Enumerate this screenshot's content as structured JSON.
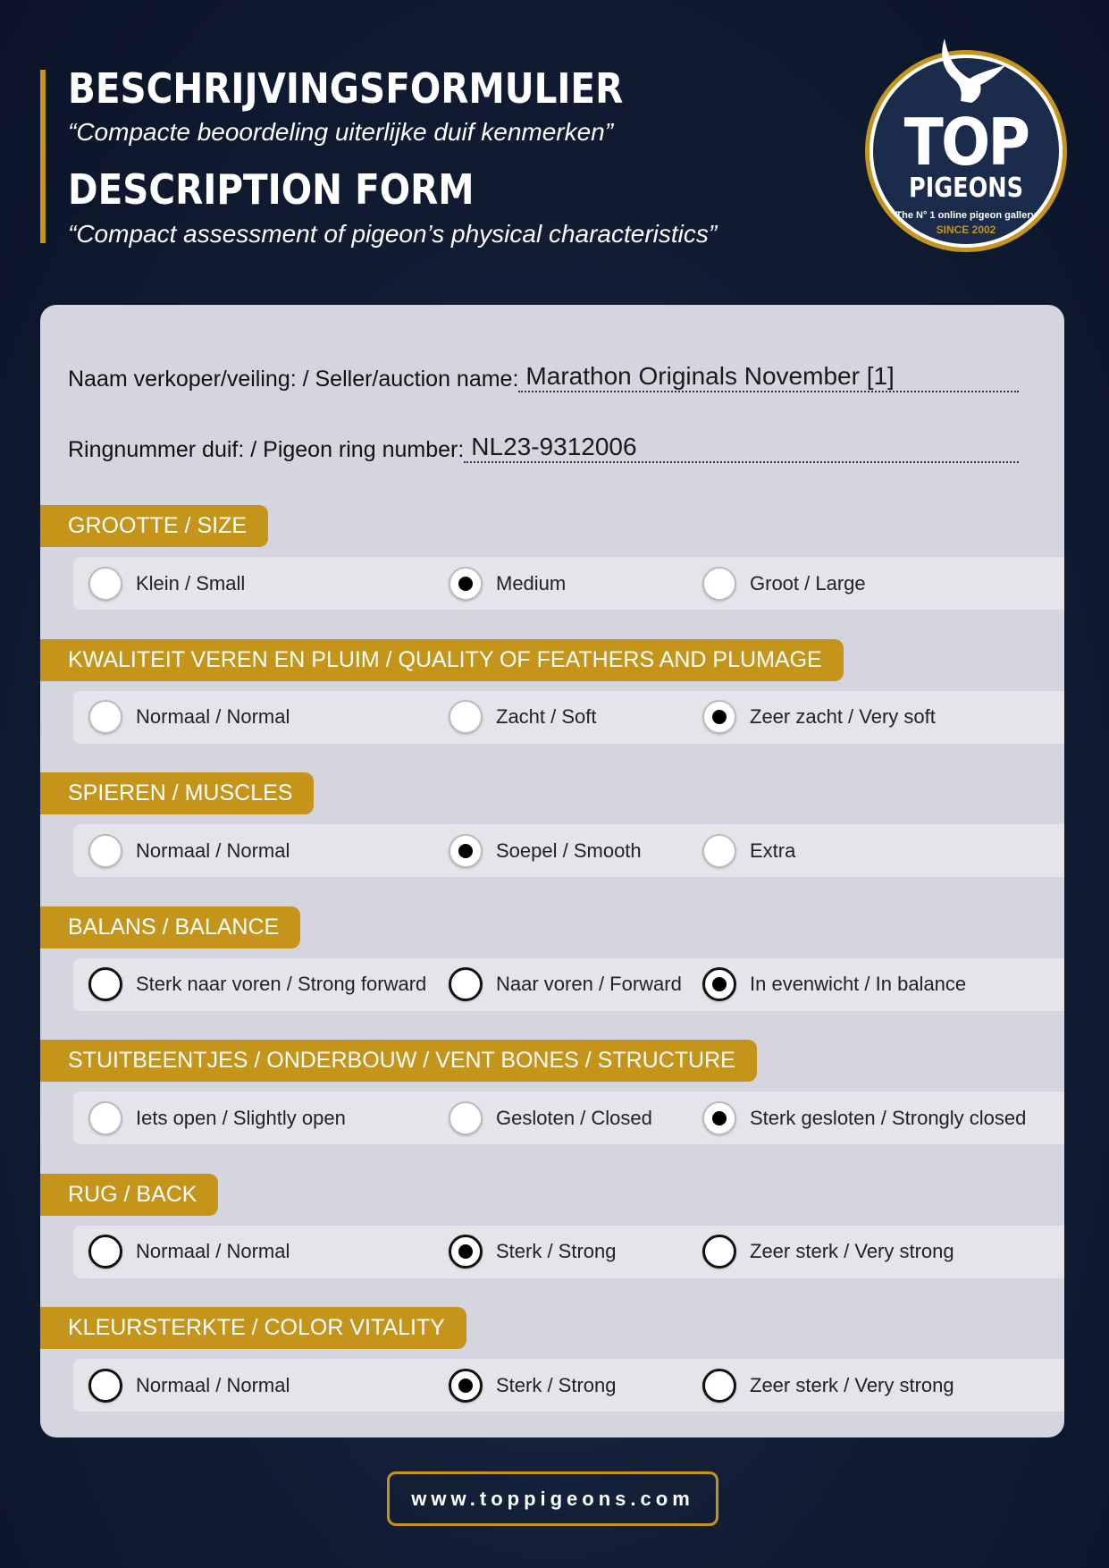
{
  "header": {
    "title_nl": "BESCHRIJVINGSFORMULIER",
    "subtitle_nl": "“Compacte beoordeling uiterlijke duif kenmerken”",
    "title_en": "DESCRIPTION FORM",
    "subtitle_en": "“Compact assessment of pigeon’s physical characteristics”"
  },
  "logo": {
    "line1": "TOP",
    "line2": "PIGEONS",
    "tagline": "The N° 1 online pigeon gallery",
    "since": "SINCE 2002"
  },
  "fields": [
    {
      "label": "Naam verkoper/veiling: / Seller/auction name:",
      "value": "Marathon Originals November [1]"
    },
    {
      "label": "Ringnummer duif: / Pigeon ring number:",
      "value": "NL23-9312006"
    }
  ],
  "sections": [
    {
      "title": "GROOTTE / SIZE",
      "options": [
        "Klein / Small",
        "Medium",
        "Groot / Large"
      ],
      "selected": 1,
      "dark": false
    },
    {
      "title": "KWALITEIT VEREN EN PLUIM / QUALITY OF FEATHERS AND PLUMAGE",
      "options": [
        "Normaal / Normal",
        "Zacht / Soft",
        "Zeer zacht / Very soft"
      ],
      "selected": 2,
      "dark": false
    },
    {
      "title": "SPIEREN / MUSCLES",
      "options": [
        "Normaal / Normal",
        "Soepel / Smooth",
        "Extra"
      ],
      "selected": 1,
      "dark": false
    },
    {
      "title": "BALANS / BALANCE",
      "options": [
        "Sterk naar voren / Strong forward",
        "Naar voren / Forward",
        "In evenwicht / In balance"
      ],
      "selected": 2,
      "dark": true
    },
    {
      "title": "STUITBEENTJES / ONDERBOUW / VENT BONES / STRUCTURE",
      "options": [
        "Iets open / Slightly open",
        "Gesloten / Closed",
        "Sterk gesloten / Strongly closed"
      ],
      "selected": 2,
      "dark": false
    },
    {
      "title": "RUG / BACK",
      "options": [
        "Normaal / Normal",
        "Sterk / Strong",
        "Zeer sterk / Very strong"
      ],
      "selected": 1,
      "dark": true
    },
    {
      "title": "KLEURSTERKTE / COLOR VITALITY",
      "options": [
        "Normaal / Normal",
        "Sterk / Strong",
        "Zeer sterk / Very strong"
      ],
      "selected": 1,
      "dark": true
    }
  ],
  "footer": {
    "url": "www.toppigeons.com"
  },
  "colors": {
    "accent": "#c4951a",
    "background": "#111c33",
    "panel": "#d4d5de"
  }
}
